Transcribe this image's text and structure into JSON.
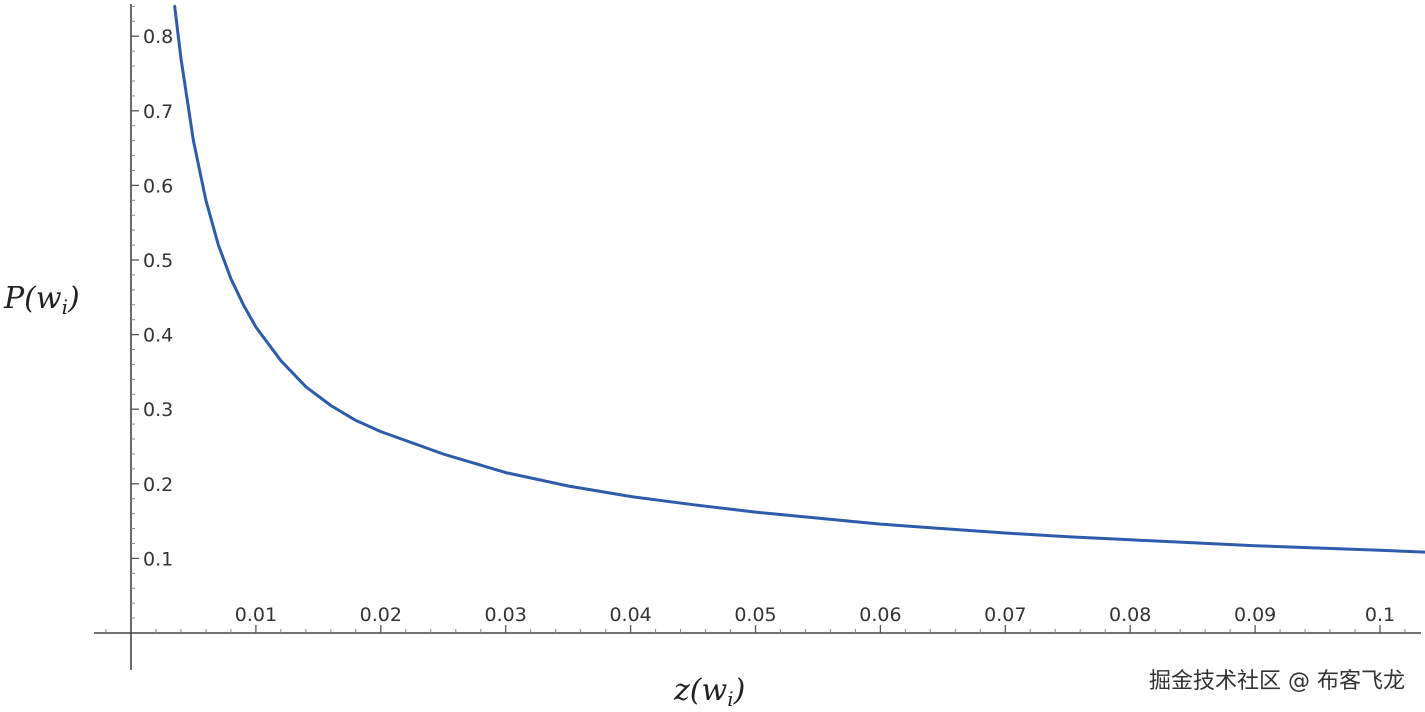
{
  "chart_data": {
    "type": "line",
    "title": "",
    "xlabel": {
      "base": "z(w",
      "sub": "i",
      "tail": ")"
    },
    "ylabel": {
      "base": "P(w",
      "sub": "i",
      "tail": ")"
    },
    "xlim": [
      0.0,
      0.104
    ],
    "ylim": [
      0.0,
      0.84
    ],
    "x_ticks": [
      0.01,
      0.02,
      0.03,
      0.04,
      0.05,
      0.06,
      0.07,
      0.08,
      0.09,
      0.1
    ],
    "x_tick_labels": [
      "0.01",
      "0.02",
      "0.03",
      "0.04",
      "0.05",
      "0.06",
      "0.07",
      "0.08",
      "0.09",
      "0.1"
    ],
    "y_ticks": [
      0.1,
      0.2,
      0.3,
      0.4,
      0.5,
      0.6,
      0.7,
      0.8
    ],
    "y_tick_labels": [
      "0.1",
      "0.2",
      "0.3",
      "0.4",
      "0.5",
      "0.6",
      "0.7",
      "0.8"
    ],
    "grid": false,
    "series": [
      {
        "color": "#2f5bab",
        "x": [
          0.0035,
          0.004,
          0.005,
          0.006,
          0.007,
          0.008,
          0.009,
          0.01,
          0.012,
          0.014,
          0.016,
          0.018,
          0.02,
          0.025,
          0.03,
          0.035,
          0.04,
          0.045,
          0.05,
          0.055,
          0.06,
          0.065,
          0.07,
          0.075,
          0.08,
          0.085,
          0.09,
          0.095,
          0.1,
          0.104
        ],
        "y": [
          0.84,
          0.77,
          0.66,
          0.58,
          0.52,
          0.475,
          0.44,
          0.41,
          0.365,
          0.33,
          0.305,
          0.285,
          0.27,
          0.24,
          0.215,
          0.197,
          0.183,
          0.172,
          0.162,
          0.154,
          0.146,
          0.14,
          0.134,
          0.129,
          0.125,
          0.121,
          0.117,
          0.114,
          0.111,
          0.108
        ]
      }
    ]
  },
  "watermark": "掘金技术社区 @ 布客飞龙"
}
